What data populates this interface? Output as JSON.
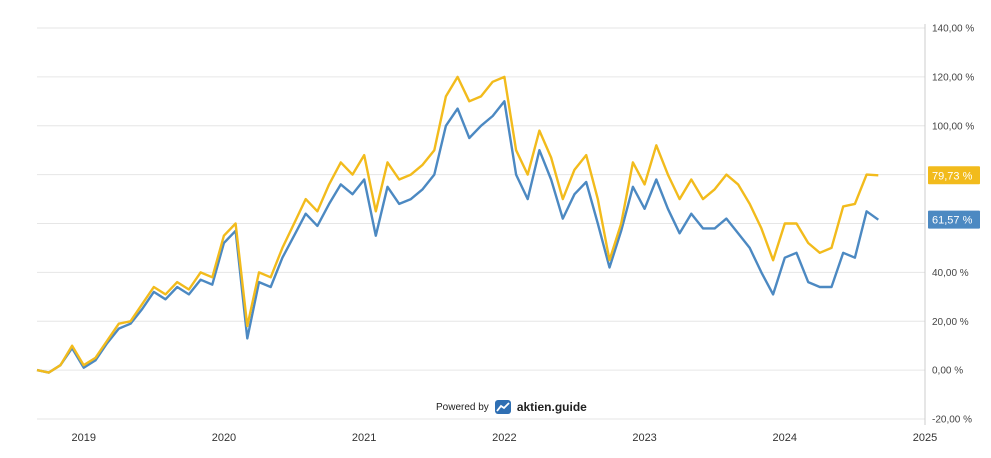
{
  "branding": {
    "powered_by": "Powered by",
    "brand": "aktien.guide"
  },
  "colors": {
    "series_a": "#f2bb1c",
    "series_b": "#4c89c2",
    "grid": "#e6e6e6"
  },
  "chart_data": {
    "type": "line",
    "y_unit": "%",
    "ylim": [
      -20,
      140
    ],
    "y_ticks": [
      "140,00 %",
      "120,00 %",
      "100,00 %",
      "80,00 %",
      "60,00 %",
      "40,00 %",
      "20,00 %",
      "0,00 %",
      "-20,00 %"
    ],
    "y_tick_values": [
      140,
      120,
      100,
      80,
      60,
      40,
      20,
      0,
      -20
    ],
    "x_ticks": [
      "2019",
      "2020",
      "2021",
      "2022",
      "2023",
      "2024",
      "2025"
    ],
    "xlim": [
      "2018-09",
      "2025-01"
    ],
    "grid": true,
    "series": [
      {
        "key": "a",
        "last_label": "79,73 %",
        "points": [
          [
            "2018-09",
            0
          ],
          [
            "2018-10",
            -1
          ],
          [
            "2018-11",
            2
          ],
          [
            "2018-12",
            10
          ],
          [
            "2019-01",
            2
          ],
          [
            "2019-02",
            5
          ],
          [
            "2019-03",
            12
          ],
          [
            "2019-04",
            19
          ],
          [
            "2019-05",
            20
          ],
          [
            "2019-06",
            27
          ],
          [
            "2019-07",
            34
          ],
          [
            "2019-08",
            31
          ],
          [
            "2019-09",
            36
          ],
          [
            "2019-10",
            33
          ],
          [
            "2019-11",
            40
          ],
          [
            "2019-12",
            38
          ],
          [
            "2020-01",
            55
          ],
          [
            "2020-02",
            60
          ],
          [
            "2020-03",
            18
          ],
          [
            "2020-04",
            40
          ],
          [
            "2020-05",
            38
          ],
          [
            "2020-06",
            50
          ],
          [
            "2020-07",
            60
          ],
          [
            "2020-08",
            70
          ],
          [
            "2020-09",
            65
          ],
          [
            "2020-10",
            76
          ],
          [
            "2020-11",
            85
          ],
          [
            "2020-12",
            80
          ],
          [
            "2021-01",
            88
          ],
          [
            "2021-02",
            65
          ],
          [
            "2021-03",
            85
          ],
          [
            "2021-04",
            78
          ],
          [
            "2021-05",
            80
          ],
          [
            "2021-06",
            84
          ],
          [
            "2021-07",
            90
          ],
          [
            "2021-08",
            112
          ],
          [
            "2021-09",
            120
          ],
          [
            "2021-10",
            110
          ],
          [
            "2021-11",
            112
          ],
          [
            "2021-12",
            118
          ],
          [
            "2022-01",
            120
          ],
          [
            "2022-02",
            90
          ],
          [
            "2022-03",
            80
          ],
          [
            "2022-04",
            98
          ],
          [
            "2022-05",
            87
          ],
          [
            "2022-06",
            70
          ],
          [
            "2022-07",
            82
          ],
          [
            "2022-08",
            88
          ],
          [
            "2022-09",
            70
          ],
          [
            "2022-10",
            45
          ],
          [
            "2022-11",
            60
          ],
          [
            "2022-12",
            85
          ],
          [
            "2023-01",
            76
          ],
          [
            "2023-02",
            92
          ],
          [
            "2023-03",
            80
          ],
          [
            "2023-04",
            70
          ],
          [
            "2023-05",
            78
          ],
          [
            "2023-06",
            70
          ],
          [
            "2023-07",
            74
          ],
          [
            "2023-08",
            80
          ],
          [
            "2023-09",
            76
          ],
          [
            "2023-10",
            68
          ],
          [
            "2023-11",
            58
          ],
          [
            "2023-12",
            45
          ],
          [
            "2024-01",
            60
          ],
          [
            "2024-02",
            60
          ],
          [
            "2024-03",
            52
          ],
          [
            "2024-04",
            48
          ],
          [
            "2024-05",
            50
          ],
          [
            "2024-06",
            67
          ],
          [
            "2024-07",
            68
          ],
          [
            "2024-08",
            80
          ],
          [
            "2024-09",
            79.73
          ]
        ]
      },
      {
        "key": "b",
        "last_label": "61,57 %",
        "points": [
          [
            "2018-09",
            0
          ],
          [
            "2018-10",
            -1
          ],
          [
            "2018-11",
            2
          ],
          [
            "2018-12",
            9
          ],
          [
            "2019-01",
            1
          ],
          [
            "2019-02",
            4
          ],
          [
            "2019-03",
            11
          ],
          [
            "2019-04",
            17
          ],
          [
            "2019-05",
            19
          ],
          [
            "2019-06",
            25
          ],
          [
            "2019-07",
            32
          ],
          [
            "2019-08",
            29
          ],
          [
            "2019-09",
            34
          ],
          [
            "2019-10",
            31
          ],
          [
            "2019-11",
            37
          ],
          [
            "2019-12",
            35
          ],
          [
            "2020-01",
            52
          ],
          [
            "2020-02",
            57
          ],
          [
            "2020-03",
            13
          ],
          [
            "2020-04",
            36
          ],
          [
            "2020-05",
            34
          ],
          [
            "2020-06",
            46
          ],
          [
            "2020-07",
            55
          ],
          [
            "2020-08",
            64
          ],
          [
            "2020-09",
            59
          ],
          [
            "2020-10",
            68
          ],
          [
            "2020-11",
            76
          ],
          [
            "2020-12",
            72
          ],
          [
            "2021-01",
            78
          ],
          [
            "2021-02",
            55
          ],
          [
            "2021-03",
            75
          ],
          [
            "2021-04",
            68
          ],
          [
            "2021-05",
            70
          ],
          [
            "2021-06",
            74
          ],
          [
            "2021-07",
            80
          ],
          [
            "2021-08",
            100
          ],
          [
            "2021-09",
            107
          ],
          [
            "2021-10",
            95
          ],
          [
            "2021-11",
            100
          ],
          [
            "2021-12",
            104
          ],
          [
            "2022-01",
            110
          ],
          [
            "2022-02",
            80
          ],
          [
            "2022-03",
            70
          ],
          [
            "2022-04",
            90
          ],
          [
            "2022-05",
            78
          ],
          [
            "2022-06",
            62
          ],
          [
            "2022-07",
            72
          ],
          [
            "2022-08",
            77
          ],
          [
            "2022-09",
            60
          ],
          [
            "2022-10",
            42
          ],
          [
            "2022-11",
            57
          ],
          [
            "2022-12",
            75
          ],
          [
            "2023-01",
            66
          ],
          [
            "2023-02",
            78
          ],
          [
            "2023-03",
            66
          ],
          [
            "2023-04",
            56
          ],
          [
            "2023-05",
            64
          ],
          [
            "2023-06",
            58
          ],
          [
            "2023-07",
            58
          ],
          [
            "2023-08",
            62
          ],
          [
            "2023-09",
            56
          ],
          [
            "2023-10",
            50
          ],
          [
            "2023-11",
            40
          ],
          [
            "2023-12",
            31
          ],
          [
            "2024-01",
            46
          ],
          [
            "2024-02",
            48
          ],
          [
            "2024-03",
            36
          ],
          [
            "2024-04",
            34
          ],
          [
            "2024-05",
            34
          ],
          [
            "2024-06",
            48
          ],
          [
            "2024-07",
            46
          ],
          [
            "2024-08",
            65
          ],
          [
            "2024-09",
            61.57
          ]
        ]
      }
    ]
  }
}
